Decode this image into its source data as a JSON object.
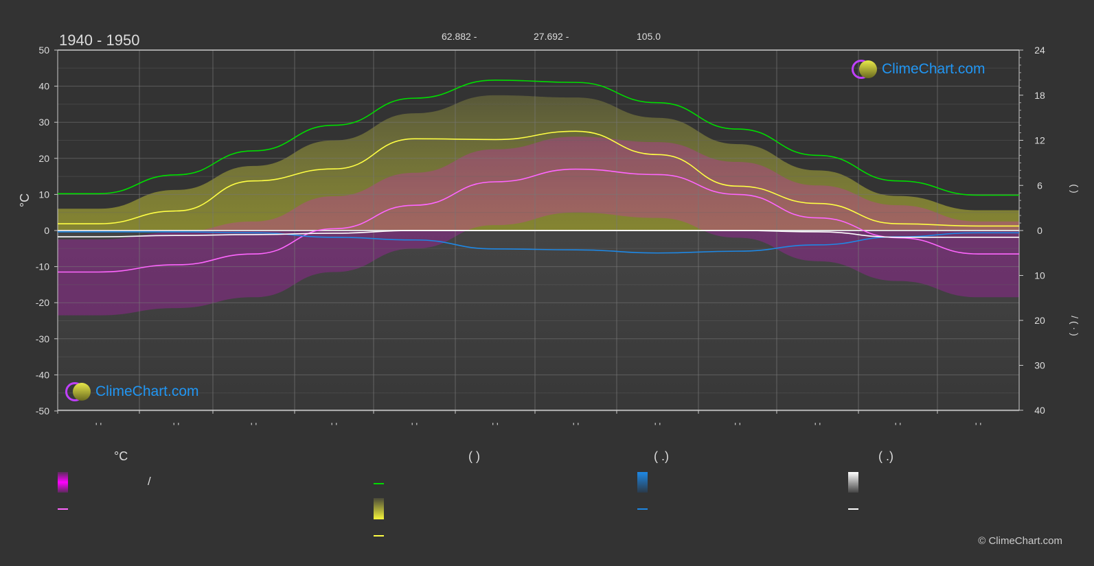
{
  "header": {
    "period": "1940 - 1950",
    "stats": [
      "62.882 -",
      "27.692 -",
      "105.0"
    ]
  },
  "colors": {
    "background": "#333333",
    "temp_mean": "#ff66ff",
    "temp_band": "#ff00ff",
    "daylight": "#00dd00",
    "sunshine": "#ffff44",
    "rain": "#1e88e5",
    "snow": "#ffffff",
    "logo": "#2196f3"
  },
  "chart_data": {
    "type": "line",
    "title": "1940 - 1950",
    "months": [
      "' '",
      "' '",
      "' '",
      "' '",
      "' '",
      "' '",
      "' '",
      "' '",
      "' '",
      "' '",
      "' '",
      "' '"
    ],
    "left_axis": {
      "label": "°C",
      "range": [
        -50,
        50
      ],
      "ticks": [
        "50",
        "40",
        "30",
        "20",
        "10",
        "0",
        "-10",
        "-20",
        "-30",
        "-40",
        "-50"
      ]
    },
    "right_axis_top": {
      "label": "( )",
      "range": [
        0,
        24
      ],
      "ticks": [
        "24",
        "18",
        "12",
        "6",
        "0"
      ]
    },
    "right_axis_bottom": {
      "label": "/ ( · )",
      "range": [
        0,
        40
      ],
      "ticks": [
        "10",
        "20",
        "30",
        "40"
      ]
    },
    "grid": true,
    "series": [
      {
        "name": "temperature-mean",
        "axis": "celsius",
        "values": [
          -11.5,
          -9.5,
          -6.5,
          0.5,
          7,
          13.5,
          17,
          15.5,
          10,
          3.5,
          -2,
          -6.5
        ]
      },
      {
        "name": "daylight-hours",
        "axis": "hours",
        "values": [
          4.9,
          7.4,
          10.6,
          14.0,
          17.6,
          20.0,
          19.7,
          17.0,
          13.5,
          10.0,
          6.6,
          4.7
        ]
      },
      {
        "name": "sunshine-hours",
        "axis": "hours",
        "values": [
          0.9,
          2.6,
          6.6,
          8.2,
          12.2,
          12.1,
          13.2,
          10.1,
          5.9,
          3.6,
          0.9,
          0.6
        ]
      },
      {
        "name": "rain-mm",
        "axis": "mm",
        "values": [
          0.3,
          0.3,
          0.5,
          1.5,
          2.1,
          4.1,
          4.3,
          5.0,
          4.6,
          3.2,
          1.4,
          0.5
        ]
      },
      {
        "name": "snow-mm",
        "axis": "mm",
        "values": [
          1.4,
          1.1,
          0.9,
          0.6,
          0,
          0,
          0,
          0,
          0,
          0.3,
          1.5,
          1.5
        ]
      }
    ]
  },
  "legend": {
    "col1_title": "°C",
    "col1_slash": "/",
    "col2_title": "(          )",
    "col3_title": "(   .)",
    "col4_title": "(   .)"
  },
  "logo_text": "ClimeChart.com",
  "copyright": "© ClimeChart.com"
}
